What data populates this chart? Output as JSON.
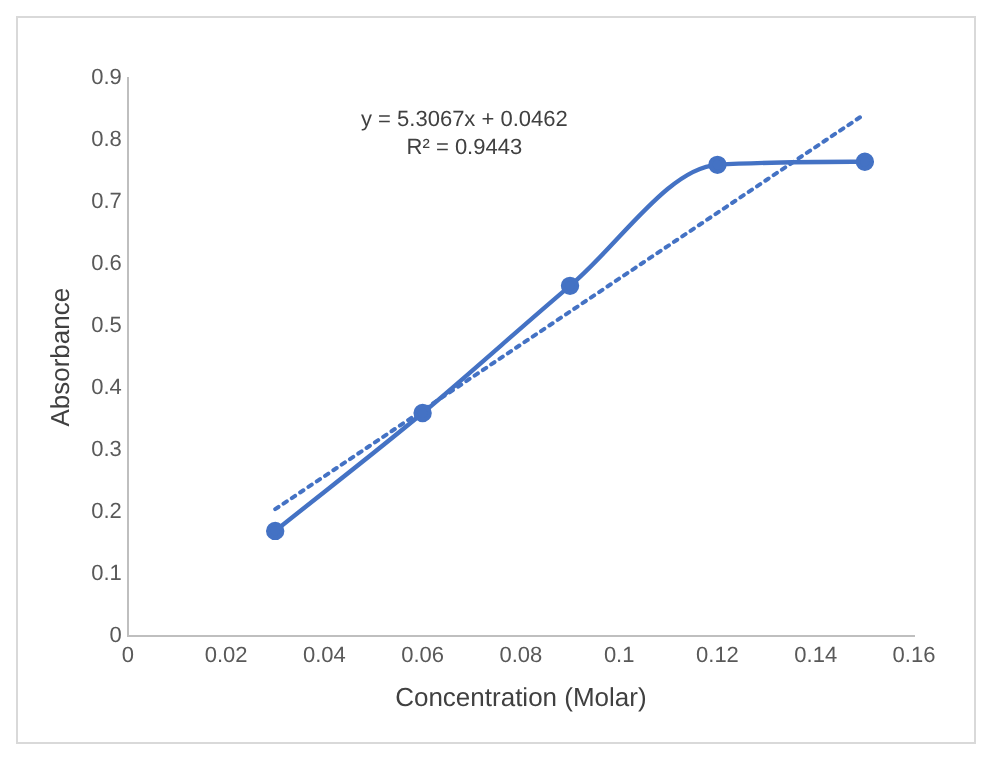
{
  "chart_data": {
    "type": "line",
    "xlabel": "Concentration (Molar)",
    "ylabel": "Absorbance",
    "x": [
      0.03,
      0.06,
      0.09,
      0.12,
      0.15
    ],
    "series": [
      {
        "color": "#4472c4",
        "values": [
          0.17,
          0.36,
          0.565,
          0.76,
          0.765
        ],
        "marker": "circle",
        "line_style": "solid"
      },
      {
        "color": "#4472c4",
        "x": [
          0.03,
          0.15
        ],
        "values": [
          0.205,
          0.842
        ],
        "marker": "none",
        "line_style": "dotted"
      }
    ],
    "annotations": [
      "y = 5.3067x + 0.0462",
      "R² = 0.9443"
    ],
    "xlim": [
      0,
      0.16
    ],
    "xticks": [
      0,
      0.02,
      0.04,
      0.06,
      0.08,
      0.1,
      0.12,
      0.14,
      0.16
    ],
    "ylim": [
      0,
      0.9
    ],
    "yticks": [
      0,
      0.1,
      0.2,
      0.3,
      0.4,
      0.5,
      0.6,
      0.7,
      0.8,
      0.9
    ],
    "grid": false,
    "legend": false
  }
}
